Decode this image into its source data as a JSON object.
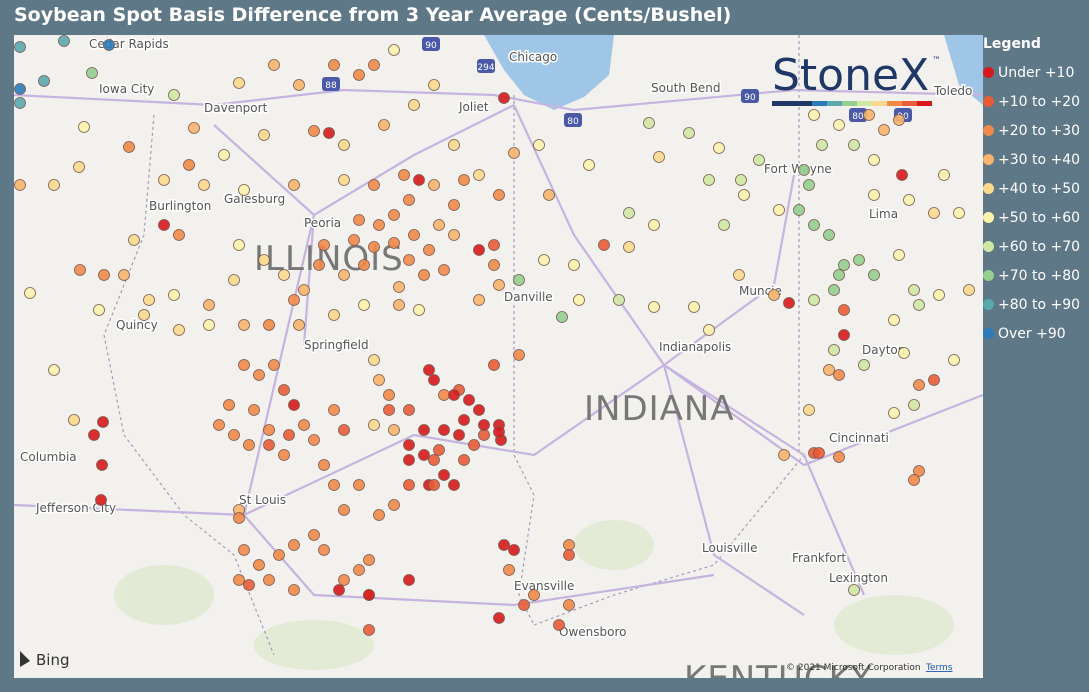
{
  "title": "Soybean Spot Basis Difference from 3 Year Average (Cents/Bushel)",
  "legend": {
    "title": "Legend",
    "items": [
      {
        "label": "Under +10",
        "color": "#d7191c"
      },
      {
        "label": "+10 to +20",
        "color": "#e85c36"
      },
      {
        "label": "+20 to +30",
        "color": "#f08a48"
      },
      {
        "label": "+30 to +40",
        "color": "#f7b46a"
      },
      {
        "label": "+40 to +50",
        "color": "#fcd98c"
      },
      {
        "label": "+50 to +60",
        "color": "#fbf3ac"
      },
      {
        "label": "+60 to +70",
        "color": "#cfe8a4"
      },
      {
        "label": "+70 to +80",
        "color": "#94cf8e"
      },
      {
        "label": "+80 to +90",
        "color": "#5aa9ad"
      },
      {
        "label": "Over +90",
        "color": "#2b7bba"
      }
    ]
  },
  "map": {
    "cities": [
      "Cedar Rapids",
      "Iowa City",
      "Davenport",
      "Chicago",
      "Joliet",
      "South Bend",
      "Toledo",
      "Fort Wayne",
      "Lima",
      "Burlington",
      "Galesburg",
      "Peoria",
      "Danville",
      "Muncie",
      "Quincy",
      "Springfield",
      "Indianapolis",
      "Dayton",
      "Columbia",
      "Cincinnati",
      "St Louis",
      "Jefferson City",
      "Louisville",
      "Frankfort",
      "Evansville",
      "Lexington",
      "Owensboro"
    ],
    "states": [
      "ILLINOIS",
      "INDIANA",
      "KENTUCKY"
    ],
    "shields": [
      "90",
      "88",
      "294",
      "80",
      "90",
      "80",
      "90"
    ],
    "logo": "StoneX",
    "logo_mark": "™",
    "provider": "Bing",
    "copyright": "© 2021 Microsoft Corporation",
    "terms": "Terms"
  }
}
